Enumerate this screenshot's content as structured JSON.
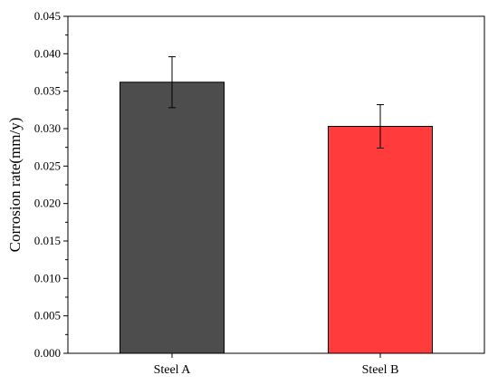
{
  "chart_data": {
    "type": "bar",
    "title": "",
    "xlabel": "",
    "ylabel": "Corrosion rate(mm/y)",
    "categories": [
      "Steel A",
      "Steel B"
    ],
    "values": [
      0.0362,
      0.0303
    ],
    "error": [
      0.0034,
      0.0029
    ],
    "colors": [
      "#4d4d4d",
      "#ff3b3b"
    ],
    "ylim": [
      0,
      0.045
    ],
    "yticks": [
      "0.000",
      "0.005",
      "0.010",
      "0.015",
      "0.020",
      "0.025",
      "0.030",
      "0.035",
      "0.040",
      "0.045"
    ],
    "grid": false,
    "legend": "none"
  }
}
